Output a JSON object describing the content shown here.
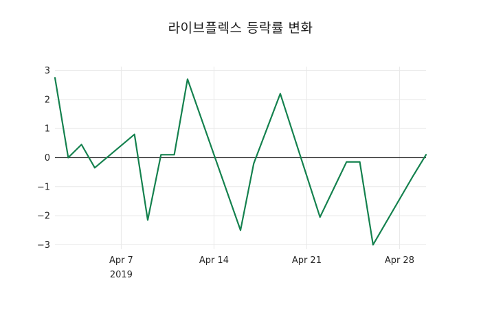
{
  "title": "라이브플렉스 등락률 변화",
  "chart_data": {
    "type": "line",
    "title": "라이브플렉스 등락률 변화",
    "xlabel": "",
    "ylabel": "",
    "legend": "none",
    "grid": true,
    "series_name": "라이브플렉스 등락률",
    "series_color": "#14814e",
    "grid_color": "#e8e8e8",
    "zero_line_color": "#3a3a3a",
    "tick_color": "#262626",
    "x": [
      "Apr 2",
      "Apr 3",
      "Apr 4",
      "Apr 5",
      "Apr 8",
      "Apr 9",
      "Apr 10",
      "Apr 11",
      "Apr 12",
      "Apr 15",
      "Apr 16",
      "Apr 17",
      "Apr 18",
      "Apr 19",
      "Apr 22",
      "Apr 23",
      "Apr 24",
      "Apr 25",
      "Apr 26",
      "Apr 29",
      "Apr 30"
    ],
    "day_offsets": [
      0,
      1,
      2,
      3,
      6,
      7,
      8,
      9,
      10,
      13,
      14,
      15,
      16,
      17,
      20,
      21,
      22,
      23,
      24,
      27,
      28
    ],
    "values": [
      2.75,
      0.0,
      0.45,
      -0.35,
      0.8,
      -2.15,
      0.1,
      0.1,
      2.7,
      -1.2,
      -2.5,
      -0.2,
      1.0,
      2.2,
      -2.05,
      -1.1,
      -0.15,
      -0.15,
      -3.0,
      -0.65,
      0.1
    ],
    "y_ticks": [
      3,
      2,
      1,
      0,
      -1,
      -2,
      -3
    ],
    "x_ticks": [
      {
        "label": "Apr 7",
        "sublabel": "2019",
        "day": 5
      },
      {
        "label": "Apr 14",
        "sublabel": "",
        "day": 12
      },
      {
        "label": "Apr 21",
        "sublabel": "",
        "day": 19
      },
      {
        "label": "Apr 28",
        "sublabel": "",
        "day": 26
      }
    ],
    "ylim": [
      -3.3,
      3.15
    ],
    "x_range_days": 28,
    "year_label": "2019"
  }
}
